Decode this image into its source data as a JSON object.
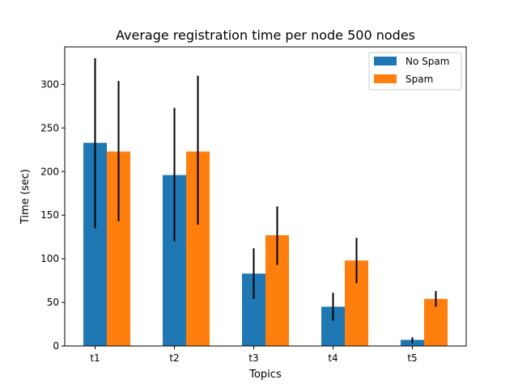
{
  "chart_data": {
    "type": "bar",
    "title": "Average registration time per node 500 nodes",
    "xlabel": "Topics",
    "ylabel": "Time (sec)",
    "categories": [
      "t1",
      "t2",
      "t3",
      "t4",
      "t5"
    ],
    "ylim": [
      0,
      343
    ],
    "yticks": [
      0,
      50,
      100,
      150,
      200,
      250,
      300
    ],
    "grid": false,
    "legend_position": "top-right",
    "series": [
      {
        "name": "No Spam",
        "color": "#1f77b4",
        "values": [
          233,
          196,
          83,
          45,
          7
        ],
        "err_low": [
          135,
          120,
          54,
          29,
          3
        ],
        "err_high": [
          330,
          273,
          112,
          61,
          10
        ]
      },
      {
        "name": "Spam",
        "color": "#ff7f0e",
        "values": [
          223,
          223,
          127,
          98,
          54
        ],
        "err_low": [
          143,
          139,
          93,
          72,
          45
        ],
        "err_high": [
          304,
          310,
          160,
          124,
          63
        ]
      }
    ]
  }
}
